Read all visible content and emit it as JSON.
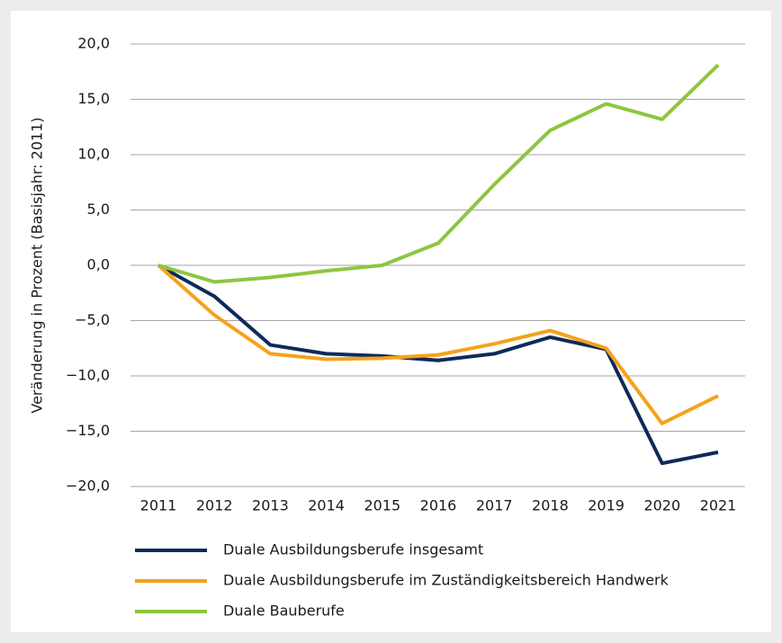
{
  "chart_data": {
    "type": "line",
    "y_label": "Veränderung in Prozent (Basisjahr: 2011)",
    "categories": [
      "2011",
      "2012",
      "2013",
      "2014",
      "2015",
      "2016",
      "2017",
      "2018",
      "2019",
      "2020",
      "2021"
    ],
    "series": [
      {
        "name": "Duale Ausbildungsberufe insgesamt",
        "color": "#0f2a5a",
        "values": [
          0,
          -2.8,
          -7.2,
          -8.0,
          -8.2,
          -8.6,
          -8.0,
          -6.5,
          -7.6,
          -17.9,
          -16.9
        ]
      },
      {
        "name": "Duale Ausbildungsberufe im Zuständigkeitsbereich Handwerk",
        "color": "#f5a21b",
        "values": [
          0,
          -4.5,
          -8.0,
          -8.5,
          -8.4,
          -8.1,
          -7.1,
          -5.9,
          -7.5,
          -14.3,
          -11.8
        ]
      },
      {
        "name": "Duale Bauberufe",
        "color": "#8dc63f",
        "values": [
          0,
          -1.5,
          -1.1,
          -0.5,
          0,
          2.0,
          7.3,
          12.2,
          14.6,
          13.2,
          18.1
        ]
      }
    ],
    "ylim": [
      -20,
      20
    ],
    "yticks": [
      {
        "value": -20,
        "label": "−20,0"
      },
      {
        "value": -15,
        "label": "−15,0"
      },
      {
        "value": -10,
        "label": "−10,0"
      },
      {
        "value": -5,
        "label": "−5,0"
      },
      {
        "value": 0,
        "label": "0,0"
      },
      {
        "value": 5,
        "label": "5,0"
      },
      {
        "value": 10,
        "label": "10,0"
      },
      {
        "value": 15,
        "label": "15,0"
      },
      {
        "value": 20,
        "label": "20,0"
      }
    ],
    "grid": true
  }
}
